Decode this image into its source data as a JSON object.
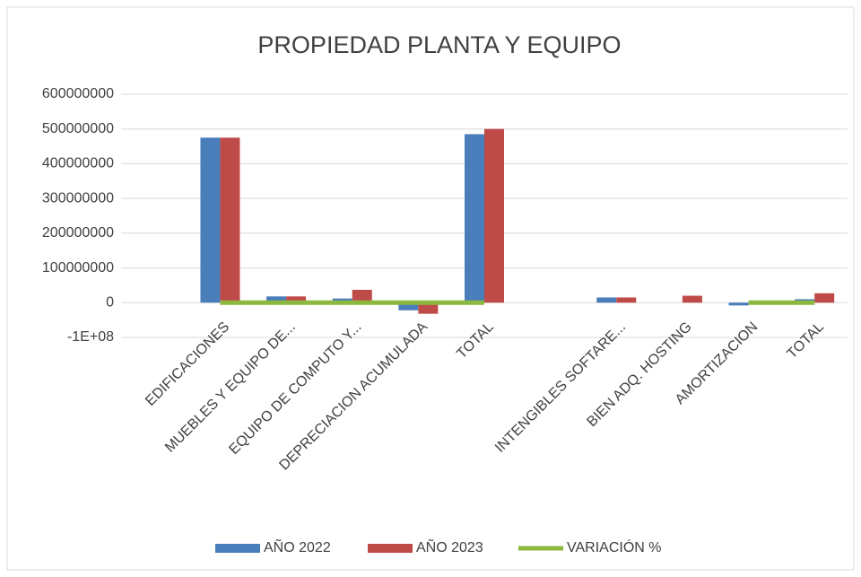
{
  "chart_data": {
    "type": "bar",
    "title": "PROPIEDAD PLANTA Y EQUIPO",
    "categories": [
      null,
      "EDIFICACIONES",
      "MUEBLES Y EQUIPO DE...",
      "EQUIPO DE COMPUTO Y...",
      "DEPRECIACION ACUMULADA",
      "TOTAL",
      null,
      "INTENGIBLES SOFTARE...",
      "BIEN ADQ. HOSTING",
      "AMORTIZACION",
      "TOTAL"
    ],
    "series": [
      {
        "name": "AÑO 2022",
        "color": "#4a7ebb",
        "type": "bar",
        "values": [
          null,
          475000000,
          18000000,
          12000000,
          -22000000,
          485000000,
          null,
          15000000,
          null,
          -8000000,
          10000000
        ]
      },
      {
        "name": "AÑO 2023",
        "color": "#be4b48",
        "type": "bar",
        "values": [
          null,
          475000000,
          18000000,
          37000000,
          -32000000,
          500000000,
          null,
          15000000,
          20000000,
          null,
          27000000
        ]
      },
      {
        "name": "VARIACIÓN %",
        "color": "#8cb83f",
        "type": "line",
        "values": [
          null,
          0,
          0,
          2,
          0,
          0,
          null,
          null,
          null,
          0,
          1
        ]
      }
    ],
    "ylim": [
      -100000000,
      600000000
    ],
    "yticks": [
      {
        "value": -100000000,
        "label": "-1E+08"
      },
      0,
      100000000,
      200000000,
      300000000,
      400000000,
      500000000,
      600000000
    ],
    "grid": true,
    "legend": "bottom"
  }
}
